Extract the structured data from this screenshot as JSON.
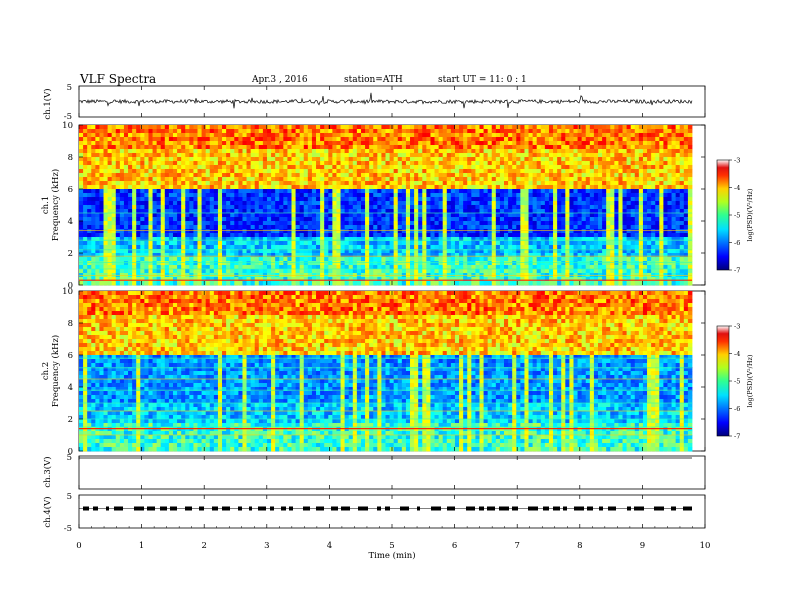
{
  "header": {
    "title": "VLF  Spectra",
    "date": "Apr.3  , 2016",
    "station": "station=ATH",
    "start": "start  UT  =    11: 0  : 1"
  },
  "colors": {
    "spectrogram_low": "#00007a",
    "spectrogram_high": "#c80000",
    "trace": "#000000",
    "background": "#ffffff"
  },
  "chart_data": [
    {
      "type": "line",
      "name": "ch1-waveform",
      "ylabel": "ch.1(V)",
      "ylim": [
        -5,
        5
      ],
      "yticks": [
        "5",
        "-5"
      ],
      "xlim": [
        0,
        10
      ],
      "description_level": 0
    },
    {
      "type": "heatmap",
      "name": "ch1-spectrogram",
      "ylabel_top": "ch.1",
      "ylabel": "Frequency  (kHz)",
      "ylim": [
        0,
        10
      ],
      "yticks": [
        "0",
        "2",
        "4",
        "6",
        "8",
        "10"
      ],
      "xlim": [
        0,
        9.8
      ],
      "colorbar": {
        "label": "log(PSD)(V²/Hz)",
        "range": [
          -7,
          -3
        ],
        "ticks": [
          "-3",
          "-4",
          "-5",
          "-6",
          "-7"
        ]
      }
    },
    {
      "type": "heatmap",
      "name": "ch2-spectrogram",
      "ylabel_top": "ch.2",
      "ylabel": "Frequency  (kHz)",
      "ylim": [
        0,
        10
      ],
      "yticks": [
        "0",
        "2",
        "4",
        "6",
        "8",
        "10"
      ],
      "xlim": [
        0,
        9.8
      ],
      "colorbar": {
        "label": "log(PSD)(V²/Hz)",
        "range": [
          -7,
          -3
        ],
        "ticks": [
          "-3",
          "-4",
          "-5",
          "-6",
          "-7"
        ]
      }
    },
    {
      "type": "line",
      "name": "ch3-waveform",
      "ylabel": "ch.3(V)",
      "ylim": [
        -5,
        5
      ],
      "yticks": [
        "5"
      ],
      "xlim": [
        0,
        9.8
      ],
      "level": 5
    },
    {
      "type": "line",
      "name": "ch4-waveform",
      "ylabel": "ch.4(V)",
      "ylim": [
        -5,
        5
      ],
      "yticks": [
        "5",
        "-5"
      ],
      "xlim": [
        0,
        9.8
      ],
      "level": 0
    }
  ],
  "xaxis": {
    "label": "Time  (min)",
    "range": [
      0,
      10
    ],
    "ticks": [
      "0",
      "1",
      "2",
      "3",
      "4",
      "5",
      "6",
      "7",
      "8",
      "9",
      "10"
    ]
  }
}
